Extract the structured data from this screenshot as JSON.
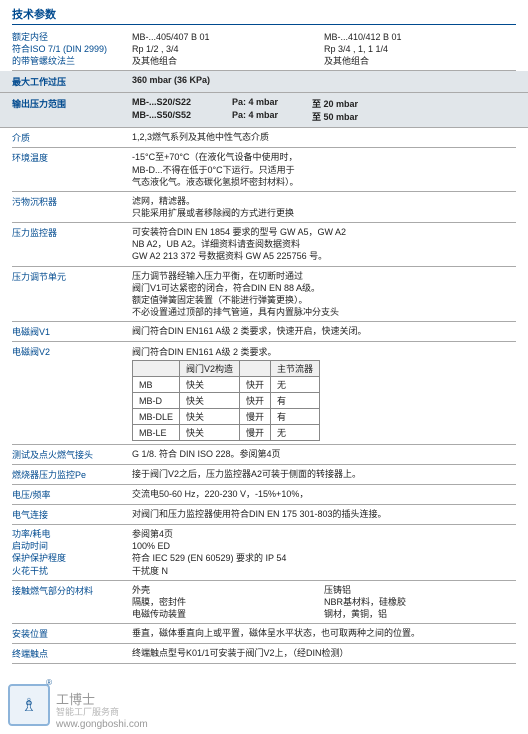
{
  "title": "技术参数",
  "s1": {
    "label1": "额定内径",
    "label2": "符合ISO 7/1 (DIN 2999)",
    "label3": "的带管螺纹法兰",
    "c1": [
      "MB-...405/407 B 01",
      "Rp 1/2 , 3/4",
      "及其他组合"
    ],
    "c2": [
      "MB-...410/412 B 01",
      "Rp 3/4 , 1, 1 1/4",
      "及其他组合"
    ]
  },
  "hl1": {
    "label": "最大工作过压",
    "value": "360 mbar (36 KPa)"
  },
  "hl2": {
    "label": "输出压力范围",
    "r1a": "MB-...S20/S22",
    "r1b": "Pa: 4 mbar",
    "r1c": "至 20 mbar",
    "r2a": "MB-...S50/S52",
    "r2b": "Pa: 4 mbar",
    "r2c": "至 50 mbar"
  },
  "rows": [
    {
      "l": "介质",
      "v": "1,2,3燃气系列及其他中性气态介质"
    },
    {
      "l": "环境温度",
      "v": "-15°C至+70°C（在液化气设备中使用时，\nMB-D...不得在低于0°C下运行。只适用于\n气态液化气。液态碳化氢损坏密封材料）。"
    },
    {
      "l": "污物沉积器",
      "v": "滤网，精滤器。\n只能采用扩展或者移除阀的方式进行更换"
    },
    {
      "l": "压力监控器",
      "v": "可安装符合DIN EN 1854 要求的型号 GW A5，GW A2\nNB A2，UB A2。详细资料请查阅数据资料\nGW A2 213 372 号数据资料 GW A5 225756 号。"
    },
    {
      "l": "压力调节单元",
      "v": "压力调节器经输入压力平衡，在切断时通过\n阀门V1可达紧密的闭合，符合DIN EN 88 A级。\n额定值弹簧固定装置（不能进行弹簧更换）。\n不必设置通过顶部的排气管道，具有内置脉冲分支头"
    },
    {
      "l": "电磁阀V1",
      "v": "阀门符合DIN EN161 A级 2 类要求，快速开启，快速关闭。"
    }
  ],
  "v2": {
    "label": "电磁阀V2",
    "intro": "阀门符合DIN EN161 A级 2 类要求。",
    "th": [
      "",
      "阀门V2构造",
      "",
      "主节流器"
    ],
    "tr": [
      [
        "MB",
        "快关",
        "快开",
        "无"
      ],
      [
        "MB-D",
        "快关",
        "快开",
        "有"
      ],
      [
        "MB-DLE",
        "快关",
        "慢开",
        "有"
      ],
      [
        "MB-LE",
        "快关",
        "慢开",
        "无"
      ]
    ]
  },
  "rows2": [
    {
      "l": "测试及点火燃气接头",
      "v": "G 1/8. 符合 DIN ISO 228。参阅第4页"
    },
    {
      "l": "燃烧器压力监控Pe",
      "v": "接于阀门V2之后，压力监控器A2可装于侧面的转接器上。"
    },
    {
      "l": "电压/频率",
      "v": "交流电50-60 Hz，220-230 V，-15%+10%，"
    },
    {
      "l": "电气连接",
      "v": "对阀门和压力监控器使用符合DIN EN 175 301-803的插头连接。"
    }
  ],
  "power": {
    "labels": [
      "功率/耗电",
      "启动时间",
      "保护保护程度",
      "火花干扰"
    ],
    "values": [
      "参阅第4页",
      "100% ED",
      "符合 IEC 529 (EN 60529) 要求的 IP 54",
      "干扰度 N"
    ]
  },
  "mat": {
    "label": "接触燃气部分的材料",
    "c1": [
      "外壳",
      "隔膜，密封件",
      "电磁传动装置"
    ],
    "c2": [
      "压铸铝",
      "NBR基材料，硅橡胶",
      "钢材，黄铜，铝"
    ]
  },
  "last": [
    {
      "l": "安装位置",
      "v": "垂直，磁体垂直向上或平置，磁体呈水平状态，也可取两种之间的位置。"
    },
    {
      "l": "终端触点",
      "v": "终端触点型号K01/1可安装于阀门V2上，（经DIN检测）"
    }
  ],
  "wm": {
    "brand": "工博士",
    "sub": "智能工厂服务商",
    "url": "www.gongboshi.com",
    "glyph": "♗"
  }
}
